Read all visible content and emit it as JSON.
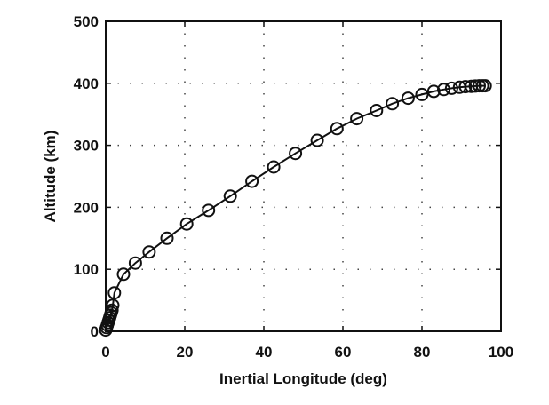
{
  "chart_data": {
    "type": "line",
    "xlabel": "Inertial Longitude (deg)",
    "ylabel": "Altitude (km)",
    "xlim": [
      0,
      100
    ],
    "ylim": [
      0,
      500
    ],
    "xticks": [
      0,
      20,
      40,
      60,
      80,
      100
    ],
    "yticks": [
      0,
      100,
      200,
      300,
      400,
      500
    ],
    "x_tick_labels": [
      "0",
      "20",
      "40",
      "60",
      "80",
      "100"
    ],
    "y_tick_labels": [
      "0",
      "100",
      "200",
      "300",
      "400",
      "500"
    ],
    "grid": true,
    "grid_style": "dotted",
    "marker": "circle-open",
    "line_color": "#111111",
    "series": [
      {
        "x": [
          0,
          0.2,
          0.4,
          0.6,
          0.8,
          1.0,
          1.2,
          1.4,
          1.6,
          1.8,
          2.2,
          4.5,
          7.5,
          11,
          15.5,
          20.5,
          26,
          31.5,
          37,
          42.5,
          48,
          53.5,
          58.5,
          63.5,
          68.5,
          72.5,
          76.5,
          80,
          83,
          85.5,
          87.5,
          89.5,
          91,
          92.5,
          93.5,
          94.5,
          95.3,
          96
        ],
        "y": [
          2,
          6,
          10,
          14,
          18,
          22,
          26,
          30,
          34,
          42,
          62,
          92,
          110,
          128,
          150,
          173,
          195,
          218,
          242,
          265,
          287,
          308,
          327,
          343,
          356,
          367,
          376,
          382,
          387,
          390,
          392,
          393.5,
          394.5,
          395,
          395.5,
          396,
          396,
          396
        ]
      }
    ]
  }
}
